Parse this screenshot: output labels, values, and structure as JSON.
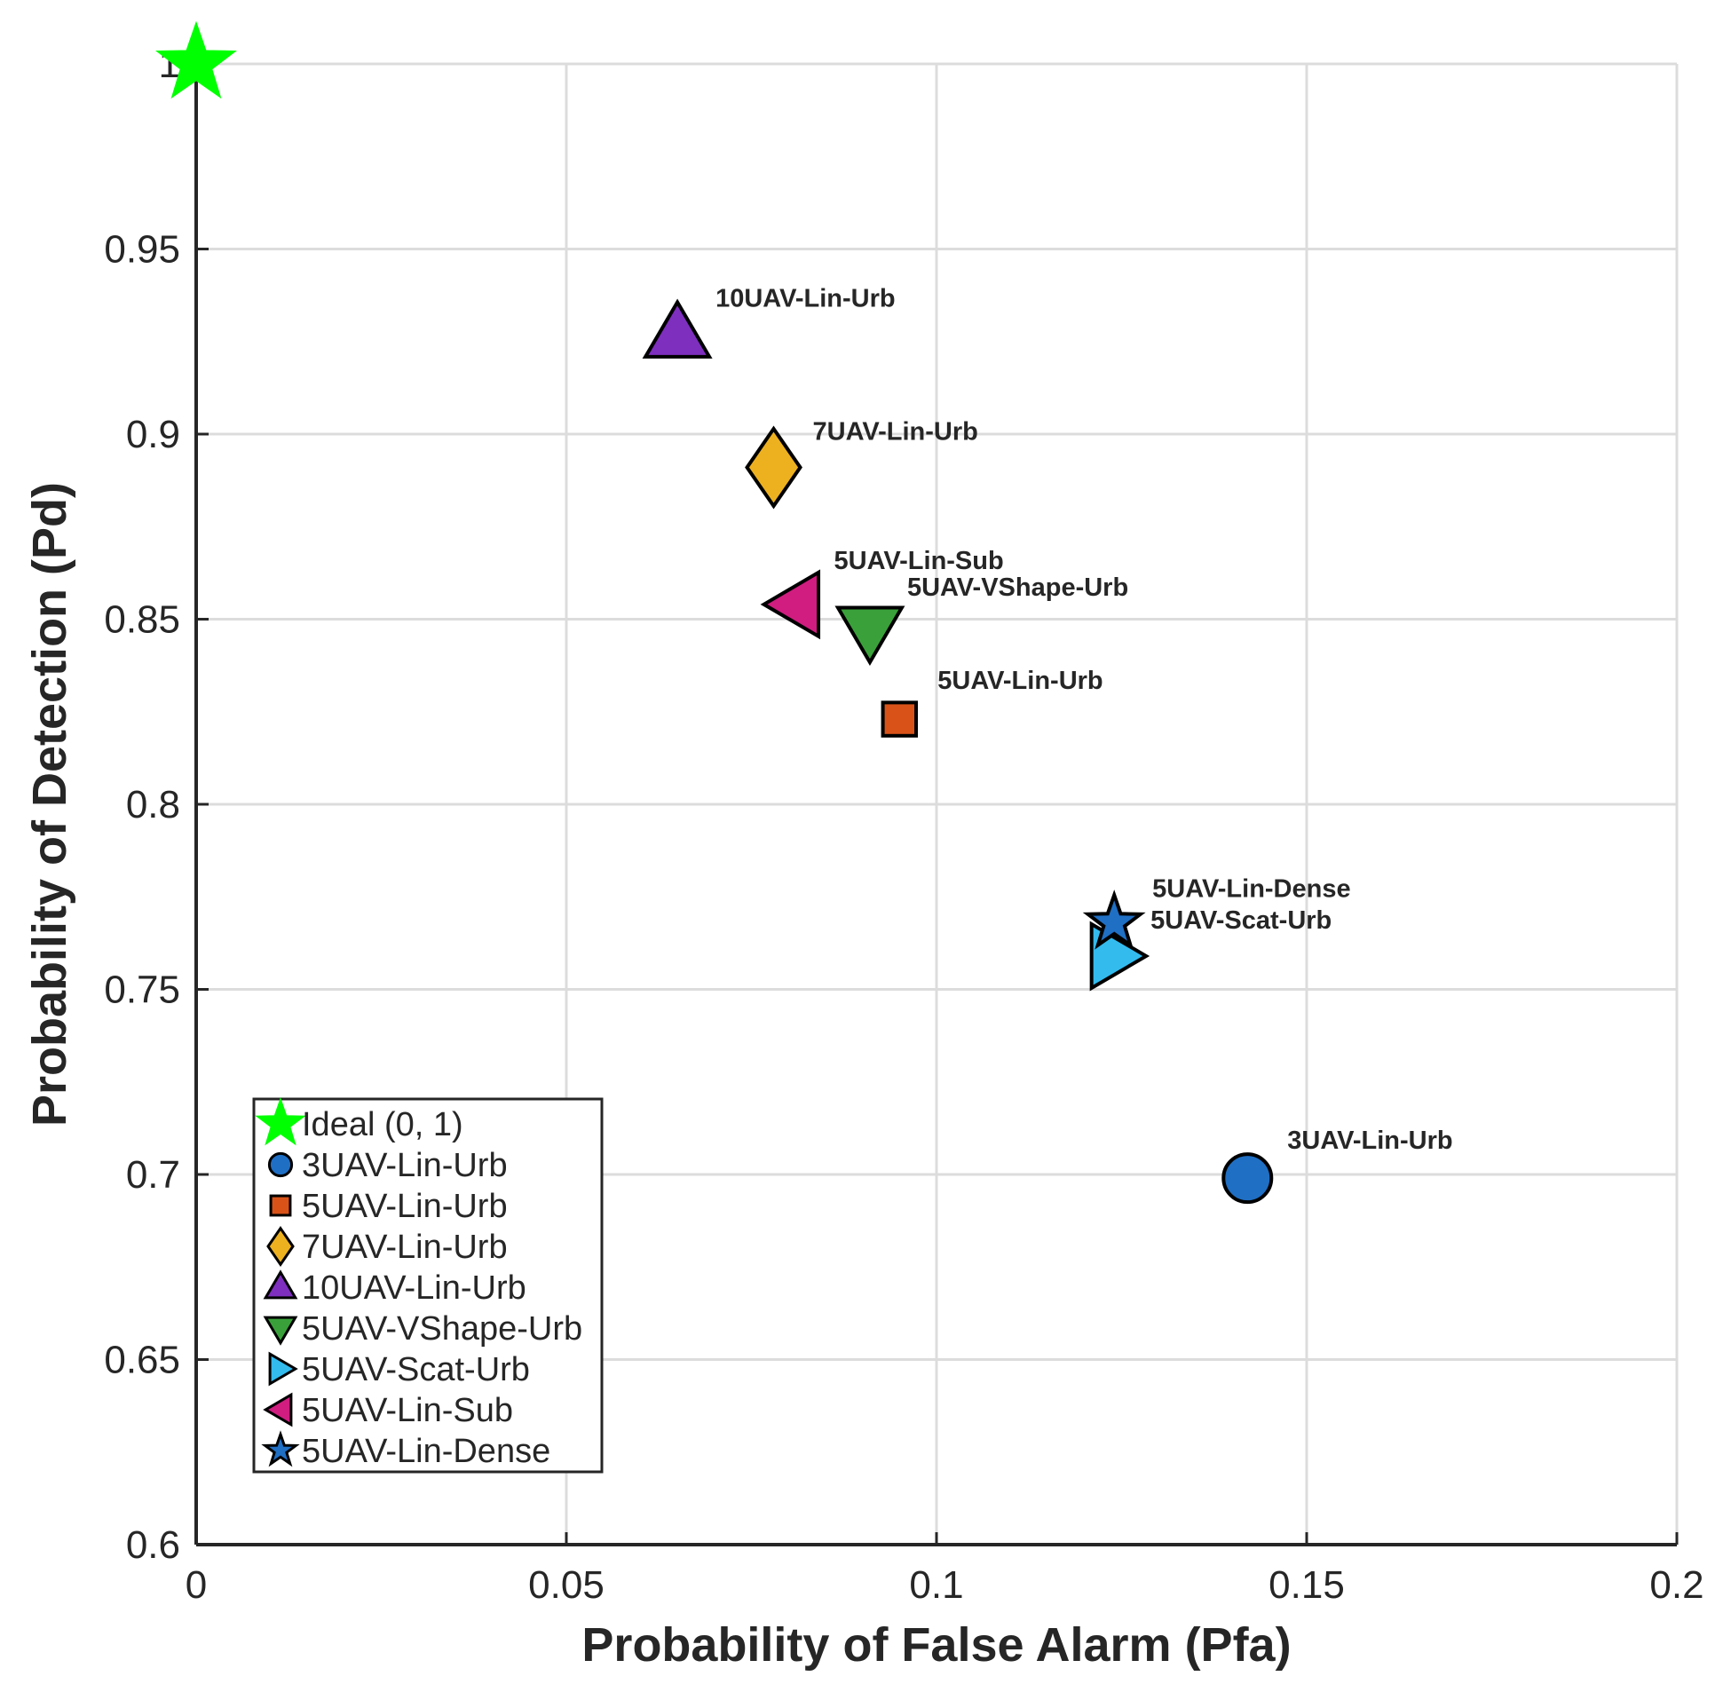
{
  "chart_data": {
    "type": "scatter",
    "title": "",
    "xlabel": "Probability of False Alarm (Pfa)",
    "ylabel": "Probability of Detection (Pd)",
    "xlim": [
      0,
      0.2
    ],
    "ylim": [
      0.6,
      1
    ],
    "grid": true,
    "xticks": [
      0,
      0.05,
      0.1,
      0.15,
      0.2
    ],
    "xtick_labels": [
      "0",
      "0.05",
      "0.1",
      "0.15",
      "0.2"
    ],
    "yticks": [
      0.6,
      0.65,
      0.7,
      0.75,
      0.8,
      0.85,
      0.9,
      0.95,
      1
    ],
    "ytick_labels": [
      "0.6",
      "0.65",
      "0.7",
      "0.75",
      "0.8",
      "0.85",
      "0.9",
      "0.95",
      "1"
    ],
    "legend_position": "bottom-left",
    "series": [
      {
        "name": "Ideal (0, 1)",
        "x": 0,
        "y": 1.0,
        "marker": "star",
        "color": "#00ff00",
        "edge": "#00ff00",
        "label": ""
      },
      {
        "name": "3UAV-Lin-Urb",
        "x": 0.142,
        "y": 0.699,
        "marker": "circle",
        "color": "#1f6fc4",
        "edge": "#000000",
        "label": "3UAV-Lin-Urb"
      },
      {
        "name": "5UAV-Lin-Urb",
        "x": 0.095,
        "y": 0.823,
        "marker": "square",
        "color": "#d95319",
        "edge": "#000000",
        "label": "5UAV-Lin-Urb"
      },
      {
        "name": "7UAV-Lin-Urb",
        "x": 0.078,
        "y": 0.891,
        "marker": "diamond",
        "color": "#edb120",
        "edge": "#000000",
        "label": "7UAV-Lin-Urb"
      },
      {
        "name": "10UAV-Lin-Urb",
        "x": 0.065,
        "y": 0.927,
        "marker": "triangle-up",
        "color": "#7e2fbe",
        "edge": "#000000",
        "label": "10UAV-Lin-Urb"
      },
      {
        "name": "5UAV-VShape-Urb",
        "x": 0.091,
        "y": 0.847,
        "marker": "triangle-down",
        "color": "#3aa13a",
        "edge": "#000000",
        "label": "5UAV-VShape-Urb"
      },
      {
        "name": "5UAV-Scat-Urb",
        "x": 0.124,
        "y": 0.759,
        "marker": "triangle-right",
        "color": "#33bbee",
        "edge": "#000000",
        "label": "5UAV-Scat-Urb"
      },
      {
        "name": "5UAV-Lin-Sub",
        "x": 0.081,
        "y": 0.854,
        "marker": "triangle-left",
        "color": "#d01d7f",
        "edge": "#000000",
        "label": "5UAV-Lin-Sub"
      },
      {
        "name": "5UAV-Lin-Dense",
        "x": 0.124,
        "y": 0.768,
        "marker": "star",
        "color": "#1f6fc4",
        "edge": "#000000",
        "label": "5UAV-Lin-Dense"
      }
    ]
  }
}
